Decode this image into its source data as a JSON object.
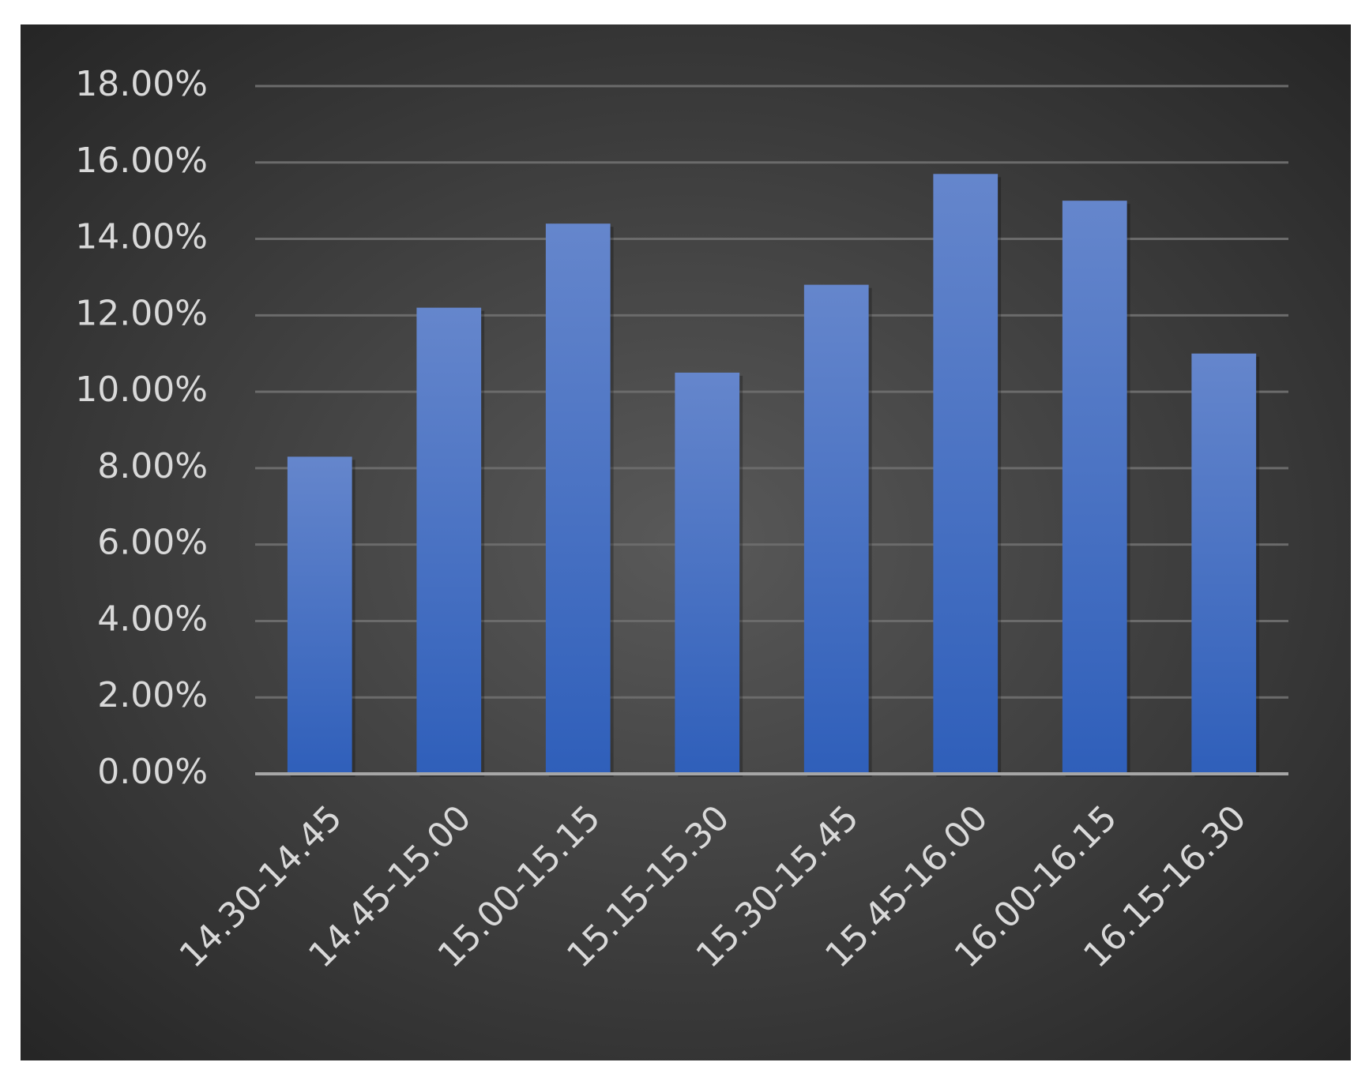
{
  "chart_data": {
    "type": "bar",
    "categories": [
      "14.30-14.45",
      "14.45-15.00",
      "15.00-15.15",
      "15.15-15.30",
      "15.30-15.45",
      "15.45-16.00",
      "16.00-16.15",
      "16.15-16.30"
    ],
    "values": [
      8.3,
      12.2,
      14.4,
      10.5,
      12.8,
      15.7,
      15.0,
      11.0
    ],
    "color": "#4472c4",
    "ylim": [
      0,
      18
    ],
    "yticks": [
      {
        "value": 0,
        "label": "0.00%"
      },
      {
        "value": 2,
        "label": "2.00%"
      },
      {
        "value": 4,
        "label": "4.00%"
      },
      {
        "value": 6,
        "label": "6.00%"
      },
      {
        "value": 8,
        "label": "8.00%"
      },
      {
        "value": 10,
        "label": "10.00%"
      },
      {
        "value": 12,
        "label": "12.00%"
      },
      {
        "value": 14,
        "label": "14.00%"
      },
      {
        "value": 16,
        "label": "16.00%"
      },
      {
        "value": 18,
        "label": "18.00%"
      }
    ],
    "grid": true
  }
}
